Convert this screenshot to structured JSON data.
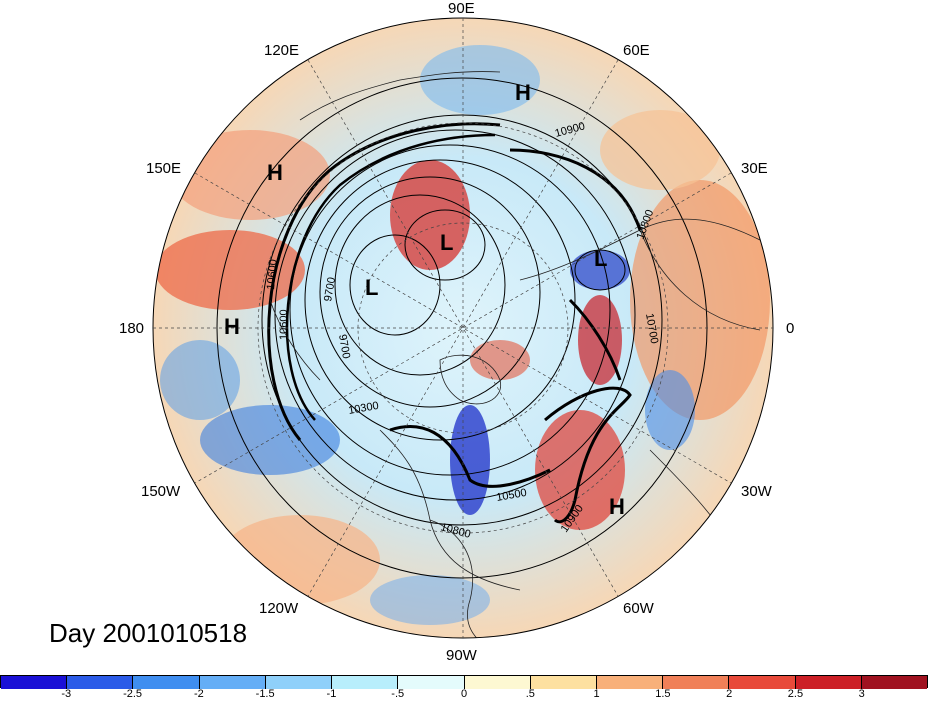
{
  "title": "Day 2001010518",
  "longitude_labels": [
    "90E",
    "60E",
    "30E",
    "0",
    "30W",
    "60W",
    "90W",
    "120W",
    "150W",
    "180",
    "150E",
    "120E"
  ],
  "pressure_systems": [
    "H",
    "H",
    "H",
    "H",
    "L",
    "L",
    "L"
  ],
  "contour_labels": [
    "10900",
    "10800",
    "10700",
    "10600",
    "9700",
    "9700",
    "10600",
    "10300",
    "10500",
    "10800",
    "10900"
  ],
  "colorbar": {
    "colors": [
      "#1a10d6",
      "#2b5be8",
      "#3f8ef0",
      "#65aef6",
      "#8fd0fa",
      "#b8eefc",
      "#e4fbfc",
      "#fdf8d2",
      "#fde0a0",
      "#f8b07a",
      "#f08058",
      "#e84a3a",
      "#cc1f26",
      "#a01220"
    ],
    "labels": [
      "-3",
      "-2.5",
      "-2",
      "-1.5",
      "-1",
      "-.5",
      "0",
      ".5",
      "1",
      "1.5",
      "2",
      "2.5",
      "3"
    ]
  }
}
